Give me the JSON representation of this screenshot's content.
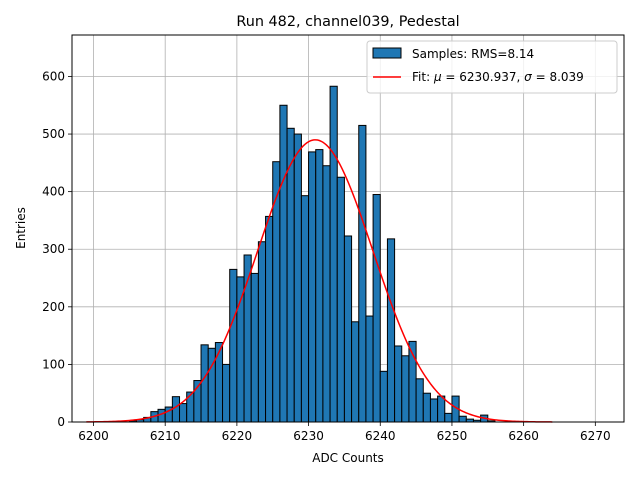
{
  "chart_data": {
    "type": "bar",
    "title": "Run 482, channel039, Pedestal",
    "xlabel": "ADC Counts",
    "ylabel": "Entries",
    "xlim": [
      6197,
      6274
    ],
    "ylim": [
      0,
      672
    ],
    "xticks": [
      "6200",
      "6210",
      "6220",
      "6230",
      "6240",
      "6250",
      "6260",
      "6270"
    ],
    "yticks": [
      "0",
      "100",
      "200",
      "300",
      "400",
      "500",
      "600"
    ],
    "grid": true,
    "legend_position": "top-right",
    "bin_width": 1,
    "series": [
      {
        "name": "Samples: RMS=8.14",
        "kind": "histogram",
        "color": "#1f77b4",
        "edge_color": "#000000",
        "bins": [
          6205,
          6206,
          6207,
          6208,
          6209,
          6210,
          6211,
          6212,
          6213,
          6214,
          6215,
          6216,
          6217,
          6218,
          6219,
          6220,
          6221,
          6222,
          6223,
          6224,
          6225,
          6226,
          6227,
          6228,
          6229,
          6230,
          6231,
          6232,
          6233,
          6234,
          6235,
          6236,
          6237,
          6238,
          6239,
          6240,
          6241,
          6242,
          6243,
          6244,
          6245,
          6246,
          6247,
          6248,
          6249,
          6250,
          6251,
          6252,
          6253,
          6254,
          6255,
          6256
        ],
        "counts": [
          2,
          4,
          8,
          18,
          22,
          26,
          44,
          32,
          52,
          72,
          134,
          128,
          138,
          100,
          265,
          252,
          290,
          258,
          313,
          357,
          452,
          550,
          510,
          500,
          393,
          469,
          473,
          445,
          583,
          425,
          323,
          174,
          515,
          184,
          395,
          88,
          318,
          132,
          115,
          140,
          75,
          50,
          40,
          45,
          15,
          45,
          10,
          5,
          3,
          12,
          2,
          0
        ]
      },
      {
        "name": "Fit: μ = 6230.937, σ = 8.039",
        "label_parts": [
          "Fit: ",
          "μ",
          " = 6230.937, ",
          "σ",
          " = 8.039"
        ],
        "kind": "line",
        "color": "#ff0000",
        "mu": 6230.937,
        "sigma": 8.039,
        "amplitude": 490,
        "x_range": [
          6199,
          6264
        ]
      }
    ]
  }
}
